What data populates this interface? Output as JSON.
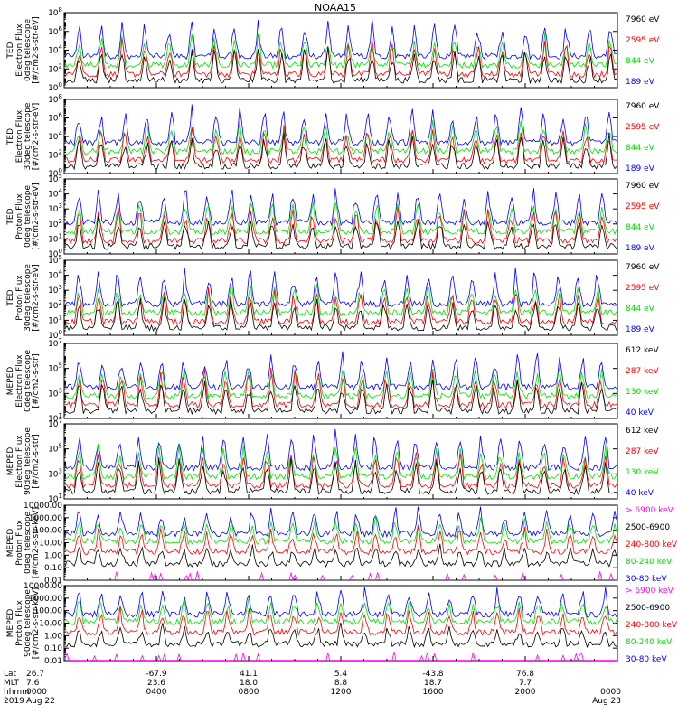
{
  "title": "NOAA15",
  "colors": {
    "black": "#000000",
    "blue": "#0000ff",
    "red": "#ff0000",
    "green": "#00e000",
    "magenta": "#ff00ff",
    "axis": "#000000"
  },
  "chart_data": [
    {
      "type": "line",
      "ylabel": [
        "TED",
        "Electron Flux",
        "0deg telescope",
        "[#/cm2-s-str-eV]"
      ],
      "ylog": true,
      "ylim": [
        1,
        100000000.0
      ],
      "yticks": [
        {
          "v": 1,
          "label": "10^0"
        },
        {
          "v": 100,
          "label": "10^2"
        },
        {
          "v": 10000,
          "label": "10^4"
        },
        {
          "v": 1000000,
          "label": "10^6"
        },
        {
          "v": 100000000,
          "label": "10^8"
        }
      ],
      "series": [
        {
          "name": "7960 eV",
          "color": "black"
        },
        {
          "name": "2595 eV",
          "color": "red"
        },
        {
          "name": "844 eV",
          "color": "green"
        },
        {
          "name": "189 eV",
          "color": "blue"
        }
      ]
    },
    {
      "type": "line",
      "ylabel": [
        "TED",
        "Electron Flux",
        "30deg telescope",
        "[#/cm2-s-str-eV]"
      ],
      "ylog": true,
      "ylim": [
        1,
        100000000.0
      ],
      "yticks": [
        {
          "v": 1,
          "label": "10^0"
        },
        {
          "v": 100,
          "label": "10^2"
        },
        {
          "v": 10000,
          "label": "10^4"
        },
        {
          "v": 1000000,
          "label": "10^6"
        },
        {
          "v": 100000000,
          "label": "10^8"
        }
      ],
      "series": [
        {
          "name": "7960 eV",
          "color": "black"
        },
        {
          "name": "2595 eV",
          "color": "red"
        },
        {
          "name": "844 eV",
          "color": "green"
        },
        {
          "name": "189 eV",
          "color": "blue"
        }
      ]
    },
    {
      "type": "line",
      "ylabel": [
        "TED",
        "Proton Flux",
        "0deg telescope",
        "[#/cm2-s-str-eV]"
      ],
      "ylog": true,
      "ylim": [
        1,
        100000.0
      ],
      "yticks": [
        {
          "v": 1,
          "label": "10^0"
        },
        {
          "v": 10,
          "label": "10^1"
        },
        {
          "v": 100,
          "label": "10^2"
        },
        {
          "v": 1000,
          "label": "10^3"
        },
        {
          "v": 10000,
          "label": "10^4"
        },
        {
          "v": 100000,
          "label": "10^5"
        }
      ],
      "series": [
        {
          "name": "7960 eV",
          "color": "black"
        },
        {
          "name": "2595 eV",
          "color": "red"
        },
        {
          "name": "844 eV",
          "color": "green"
        },
        {
          "name": "189 eV",
          "color": "blue"
        }
      ]
    },
    {
      "type": "line",
      "ylabel": [
        "TED",
        "Proton Flux",
        "30deg telescope",
        "[#/cm2-s-str-eV]"
      ],
      "ylog": true,
      "ylim": [
        1,
        100000.0
      ],
      "yticks": [
        {
          "v": 1,
          "label": "10^0"
        },
        {
          "v": 10,
          "label": "10^1"
        },
        {
          "v": 100,
          "label": "10^2"
        },
        {
          "v": 1000,
          "label": "10^3"
        },
        {
          "v": 10000,
          "label": "10^4"
        },
        {
          "v": 100000,
          "label": "10^5"
        }
      ],
      "series": [
        {
          "name": "7960 eV",
          "color": "black"
        },
        {
          "name": "2595 eV",
          "color": "red"
        },
        {
          "name": "844 eV",
          "color": "green"
        },
        {
          "name": "189 eV",
          "color": "blue"
        }
      ]
    },
    {
      "type": "line",
      "ylabel": [
        "MEPED",
        "Electron Flux",
        "0deg telescope",
        "[#/cm2-s-str]"
      ],
      "ylog": true,
      "ylim": [
        10,
        10000000.0
      ],
      "yticks": [
        {
          "v": 10,
          "label": "10^1"
        },
        {
          "v": 1000,
          "label": "10^3"
        },
        {
          "v": 100000,
          "label": "10^5"
        },
        {
          "v": 10000000,
          "label": "10^7"
        }
      ],
      "series": [
        {
          "name": "612 keV",
          "color": "black"
        },
        {
          "name": "287 keV",
          "color": "red"
        },
        {
          "name": "130 keV",
          "color": "green"
        },
        {
          "name": "40 keV",
          "color": "blue"
        }
      ]
    },
    {
      "type": "line",
      "ylabel": [
        "MEPED",
        "Electron Flux",
        "90deg telescope",
        "[#/cm2-s-str]"
      ],
      "ylog": true,
      "ylim": [
        10,
        10000000.0
      ],
      "yticks": [
        {
          "v": 10,
          "label": "10^1"
        },
        {
          "v": 1000,
          "label": "10^3"
        },
        {
          "v": 100000,
          "label": "10^5"
        },
        {
          "v": 10000000,
          "label": "10^7"
        }
      ],
      "series": [
        {
          "name": "612 keV",
          "color": "black"
        },
        {
          "name": "287 keV",
          "color": "red"
        },
        {
          "name": "130 keV",
          "color": "green"
        },
        {
          "name": "40 keV",
          "color": "blue"
        }
      ]
    },
    {
      "type": "line",
      "ylabel": [
        "MEPED",
        "Proton Flux",
        "0deg telescope",
        "[#/cm2-s-str-keV]"
      ],
      "ylog": true,
      "ylim": [
        0.01,
        10000
      ],
      "yticks": [
        {
          "v": 0.01,
          "label": "0.01"
        },
        {
          "v": 0.1,
          "label": "0.10"
        },
        {
          "v": 1,
          "label": "1.00"
        },
        {
          "v": 10,
          "label": "10.00"
        },
        {
          "v": 100,
          "label": "100.00"
        },
        {
          "v": 1000,
          "label": "1000.00"
        },
        {
          "v": 10000,
          "label": "10000.00"
        }
      ],
      "series": [
        {
          "name": "> 6900 keV",
          "color": "magenta"
        },
        {
          "name": "2500-6900",
          "color": "black"
        },
        {
          "name": "240-800 keV",
          "color": "red"
        },
        {
          "name": "80-240 keV",
          "color": "green"
        },
        {
          "name": "30-80 keV",
          "color": "blue"
        }
      ]
    },
    {
      "type": "line",
      "ylabel": [
        "MEPED",
        "Proton Flux",
        "90deg telescope",
        "[#/cm2-s-str-keV]"
      ],
      "ylog": true,
      "ylim": [
        0.01,
        10000
      ],
      "yticks": [
        {
          "v": 0.01,
          "label": "0.01"
        },
        {
          "v": 0.1,
          "label": "0.10"
        },
        {
          "v": 1,
          "label": "1.00"
        },
        {
          "v": 10,
          "label": "10.00"
        },
        {
          "v": 100,
          "label": "100.00"
        },
        {
          "v": 1000,
          "label": "1000.00"
        },
        {
          "v": 10000,
          "label": "10000.00"
        }
      ],
      "series": [
        {
          "name": "> 6900 keV",
          "color": "magenta"
        },
        {
          "name": "2500-6900",
          "color": "black"
        },
        {
          "name": "240-800 keV",
          "color": "red"
        },
        {
          "name": "80-240 keV",
          "color": "green"
        },
        {
          "name": "30-80 keV",
          "color": "blue"
        }
      ]
    }
  ],
  "x_axis": {
    "row_labels": [
      "Lat",
      "MLT",
      "hhmm",
      "2019"
    ],
    "ticks": [
      {
        "hours": 0,
        "lat": "26.7",
        "mlt": "7.6",
        "hhmm": "0000",
        "date": "Aug 22"
      },
      {
        "hours": 4,
        "lat": "-67.9",
        "mlt": "23.6",
        "hhmm": "0400",
        "date": ""
      },
      {
        "hours": 8,
        "lat": "41.1",
        "mlt": "18.0",
        "hhmm": "0800",
        "date": ""
      },
      {
        "hours": 12,
        "lat": "5.4",
        "mlt": "8.8",
        "hhmm": "1200",
        "date": ""
      },
      {
        "hours": 16,
        "lat": "-43.8",
        "mlt": "18.7",
        "hhmm": "1600",
        "date": ""
      },
      {
        "hours": 20,
        "lat": "76.8",
        "mlt": "7.7",
        "hhmm": "2000",
        "date": ""
      },
      {
        "hours": 24,
        "lat": "",
        "mlt": "",
        "hhmm": "0000",
        "date": "Aug 23"
      }
    ]
  }
}
